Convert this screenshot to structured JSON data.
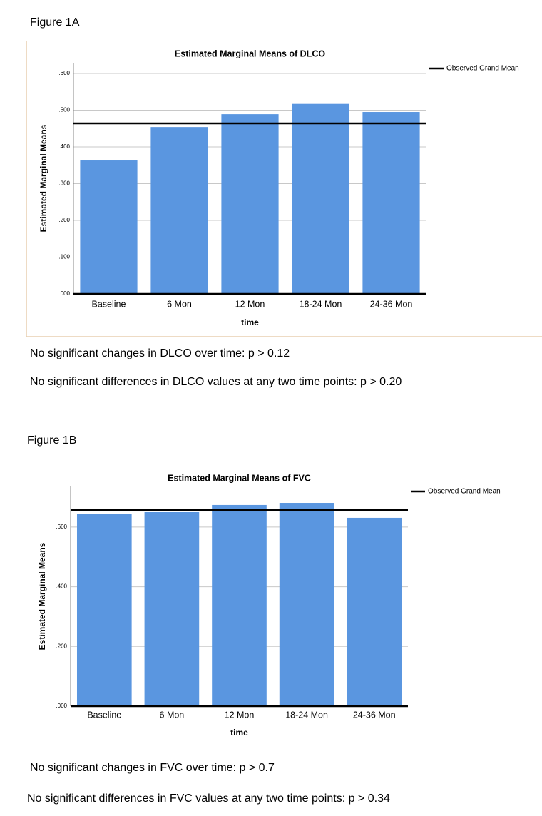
{
  "figures": [
    {
      "label": "Figure 1A",
      "notes": [
        "No significant changes in DLCO over time:  p > 0.12",
        "No significant differences in DLCO values at any two time points:  p > 0.20"
      ]
    },
    {
      "label": "Figure 1B",
      "notes": [
        "No significant changes in FVC over time:  p > 0.7",
        "No significant differences in FVC values at any two time points:  p > 0.34"
      ]
    }
  ],
  "chart_data": [
    {
      "type": "bar",
      "title": "Estimated Marginal Means of DLCO",
      "x_label": "time",
      "y_label": "Estimated Marginal Means",
      "categories": [
        "Baseline",
        "6 Mon",
        "12 Mon",
        "18-24 Mon",
        "24-36 Mon"
      ],
      "values": [
        0.363,
        0.454,
        0.489,
        0.517,
        0.495
      ],
      "color": "#5a96e0",
      "reference_line": {
        "name": "Observed Grand Mean",
        "value": 0.464
      },
      "ylim": [
        0,
        0.629
      ],
      "yticks": [
        {
          "value": 0,
          "label": ".000"
        },
        {
          "value": 0.1,
          "label": ".100"
        },
        {
          "value": 0.2,
          "label": ".200"
        },
        {
          "value": 0.3,
          "label": ".300"
        },
        {
          "value": 0.4,
          "label": ".400"
        },
        {
          "value": 0.5,
          "label": ".500"
        },
        {
          "value": 0.6,
          "label": ".600"
        }
      ],
      "grid": true
    },
    {
      "type": "bar",
      "title": "Estimated Marginal Means of FVC",
      "x_label": "time",
      "y_label": "Estimated Marginal Means",
      "categories": [
        "Baseline",
        "6 Mon",
        "12 Mon",
        "18-24 Mon",
        "24-36 Mon"
      ],
      "values": [
        0.645,
        0.65,
        0.674,
        0.681,
        0.631
      ],
      "color": "#5a96e0",
      "reference_line": {
        "name": "Observed Grand Mean",
        "value": 0.657
      },
      "ylim": [
        0,
        0.736
      ],
      "yticks": [
        {
          "value": 0,
          "label": ".000"
        },
        {
          "value": 0.2,
          "label": ".200"
        },
        {
          "value": 0.4,
          "label": ".400"
        },
        {
          "value": 0.6,
          "label": ".600"
        }
      ],
      "grid": true
    }
  ]
}
